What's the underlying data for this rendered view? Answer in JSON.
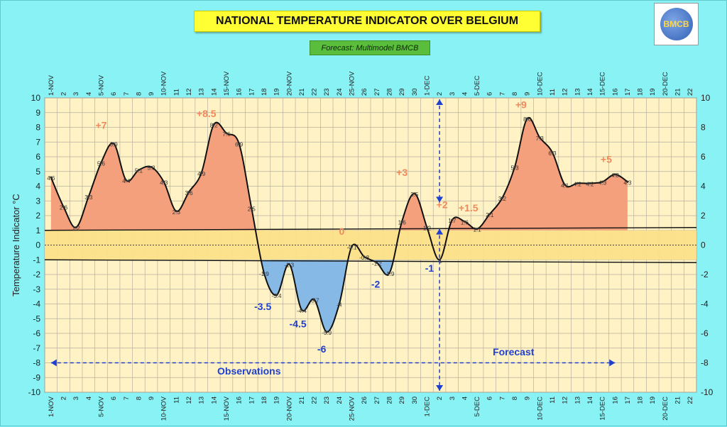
{
  "header": {
    "title": "NATIONAL TEMPERATURE INDICATOR OVER  BELGIUM",
    "subtitle": "Forecast:  Multimodel BMCB",
    "logo_text": "BMCB"
  },
  "colors": {
    "background": "#88f2f5",
    "plot_area": "#fff2c4",
    "warm_fill": "#f4a07c",
    "cold_fill": "#86b9e6",
    "normal_band": "#fce08a",
    "warm_label": "#f08a5d",
    "cold_label": "#1f3fd0",
    "arrow": "#1f3fd0"
  },
  "chart_data": {
    "type": "line",
    "title": "NATIONAL TEMPERATURE INDICATOR OVER  BELGIUM",
    "ylabel": "Temperature Indicator  °C",
    "ylim": [
      -10,
      10
    ],
    "y_ticks_left": [
      "10",
      "9",
      "8",
      "7",
      "6",
      "5",
      "4",
      "3",
      "2",
      "1",
      "0",
      "-1",
      "-2",
      "-3",
      "-4",
      "-5",
      "-6",
      "-7",
      "-8",
      "-9",
      "-10"
    ],
    "y_ticks_right": [
      "10",
      "8",
      "6",
      "4",
      "2",
      "0",
      "-2",
      "-4",
      "-6",
      "-8",
      "-10"
    ],
    "x_labels": [
      "1-NOV",
      "2",
      "3",
      "4",
      "5-NOV",
      "6",
      "7",
      "8",
      "9",
      "10-NOV",
      "11",
      "12",
      "13",
      "14",
      "15-NOV",
      "16",
      "17",
      "18",
      "19",
      "20-NOV",
      "21",
      "22",
      "23",
      "24",
      "25-NOV",
      "26",
      "27",
      "28",
      "29",
      "30",
      "1-DEC",
      "2",
      "3",
      "4",
      "5-DEC",
      "6",
      "7",
      "8",
      "9",
      "10-DEC",
      "11",
      "12",
      "13",
      "14",
      "15-DEC",
      "16",
      "17",
      "18",
      "19",
      "20-DEC",
      "21",
      "22"
    ],
    "normal_band": [
      -1,
      1
    ],
    "series": [
      {
        "values": [
          4.6,
          2.6,
          1.2,
          3.3,
          5.6,
          6.9,
          4.4,
          5.1,
          5.3,
          4.3,
          2.3,
          3.6,
          4.9,
          8.2,
          7.6,
          6.9,
          2.5,
          -1.9,
          -3.4,
          -1.3,
          -4.4,
          -3.7,
          -5.9,
          -4,
          -0.1,
          -0.8,
          -1.2,
          -1.9,
          1.6,
          3.5,
          1.2,
          -1,
          1.7,
          1.6,
          1.1,
          2.1,
          3.2,
          5.3,
          8.6,
          7.3,
          6.3,
          4.1,
          4.2,
          4.2,
          4.3,
          4.8,
          4.3
        ]
      }
    ],
    "point_labels": [
      "4.6",
      "2.6",
      "1.2",
      "3.3",
      "5.6",
      "6.9",
      "4.4",
      "5.1",
      "5.3",
      "4.3",
      "2.3",
      "3.6",
      "4.9",
      "8.2",
      "7.6",
      "6.9",
      "2.5",
      "-1.9",
      "-3.4",
      "-1.3",
      "-4.4",
      "-3.7",
      "-5.9",
      "-4",
      "-0.1",
      "-0.8",
      "-1.2",
      "-1.9",
      "1.6",
      "3.5",
      "1.2",
      "-1",
      "1.7",
      "1.6",
      "1.1",
      "2.1",
      "3.2",
      "5.3",
      "8.6",
      "7.3",
      "6.3",
      "4.1",
      "4.2",
      "4.2",
      "4.3",
      "4.8",
      "4.3"
    ],
    "annotations": [
      {
        "text": "+7",
        "x": 4,
        "y": 7.9,
        "kind": "warm"
      },
      {
        "text": "+8.5",
        "x": 12.4,
        "y": 8.7,
        "kind": "warm"
      },
      {
        "text": "-3.5",
        "x": 16.9,
        "y": -4.4,
        "kind": "cold"
      },
      {
        "text": "-4.5",
        "x": 19.7,
        "y": -5.6,
        "kind": "cold"
      },
      {
        "text": "-6",
        "x": 21.6,
        "y": -7.3,
        "kind": "cold"
      },
      {
        "text": "0",
        "x": 23.2,
        "y": 0.7,
        "kind": "warm"
      },
      {
        "text": "-2",
        "x": 25.9,
        "y": -2.9,
        "kind": "cold"
      },
      {
        "text": "+3",
        "x": 28,
        "y": 4.7,
        "kind": "warm"
      },
      {
        "text": "-1",
        "x": 30.2,
        "y": -1.8,
        "kind": "cold"
      },
      {
        "text": "+2",
        "x": 31.2,
        "y": 2.5,
        "kind": "warm"
      },
      {
        "text": "+1.5",
        "x": 33.3,
        "y": 2.3,
        "kind": "warm"
      },
      {
        "text": "+9",
        "x": 37.5,
        "y": 9.3,
        "kind": "warm"
      },
      {
        "text": "+5",
        "x": 44.3,
        "y": 5.6,
        "kind": "warm"
      }
    ],
    "observations_label": "Observations",
    "forecast_label": "Forecast"
  }
}
